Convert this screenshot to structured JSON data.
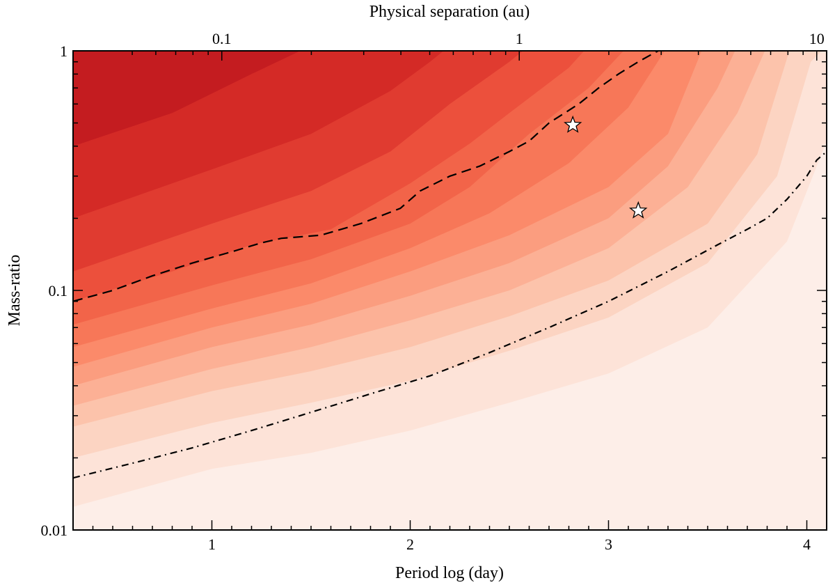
{
  "chart_data": {
    "type": "contour",
    "xlabel": "Period log (day)",
    "x2label": "Physical separation (au)",
    "ylabel": "Mass-ratio",
    "xlim": [
      0.3,
      4.1
    ],
    "ylim": [
      0.01,
      1
    ],
    "y_scale": "log",
    "x_ticks": [
      {
        "value": 1,
        "label": "1"
      },
      {
        "value": 2,
        "label": "2"
      },
      {
        "value": 3,
        "label": "3"
      },
      {
        "value": 4,
        "label": "4"
      }
    ],
    "x2_ticks": [
      {
        "value": 1.05,
        "label": "0.1"
      },
      {
        "value": 2.55,
        "label": "1"
      },
      {
        "value": 4.05,
        "label": "10"
      }
    ],
    "y_ticks": [
      {
        "value": 1,
        "label": "1"
      },
      {
        "value": 0.1,
        "label": "0.1"
      },
      {
        "value": 0.01,
        "label": "0.01"
      }
    ],
    "color_scale": [
      "#fdeee8",
      "#fde3d8",
      "#fcd4c2",
      "#fcc3ab",
      "#fcb095",
      "#fb9d7f",
      "#fb8a6a",
      "#f77758",
      "#f26449",
      "#ec503c",
      "#e03b30",
      "#d42a26",
      "#c41c20"
    ],
    "levels": [
      {
        "color": "#fde3d8",
        "points": [
          [
            0.3,
            0.0125
          ],
          [
            1.0,
            0.018
          ],
          [
            1.5,
            0.021
          ],
          [
            2.0,
            0.026
          ],
          [
            2.5,
            0.034
          ],
          [
            3.0,
            0.045
          ],
          [
            3.5,
            0.07
          ],
          [
            3.9,
            0.16
          ],
          [
            4.1,
            0.42
          ]
        ]
      },
      {
        "color": "#fcd4c2",
        "points": [
          [
            0.3,
            0.02
          ],
          [
            1.0,
            0.028
          ],
          [
            1.5,
            0.034
          ],
          [
            2.0,
            0.042
          ],
          [
            2.5,
            0.056
          ],
          [
            3.0,
            0.077
          ],
          [
            3.5,
            0.13
          ],
          [
            3.85,
            0.3
          ],
          [
            4.02,
            0.9
          ],
          [
            4.1,
            1.05
          ]
        ]
      },
      {
        "color": "#fcc3ab",
        "points": [
          [
            0.3,
            0.027
          ],
          [
            1.0,
            0.038
          ],
          [
            1.5,
            0.046
          ],
          [
            2.0,
            0.058
          ],
          [
            2.5,
            0.078
          ],
          [
            3.0,
            0.11
          ],
          [
            3.5,
            0.19
          ],
          [
            3.75,
            0.37
          ],
          [
            3.92,
            1.05
          ]
        ]
      },
      {
        "color": "#fcb095",
        "points": [
          [
            0.3,
            0.033
          ],
          [
            1.0,
            0.047
          ],
          [
            1.5,
            0.058
          ],
          [
            2.0,
            0.075
          ],
          [
            2.5,
            0.1
          ],
          [
            3.0,
            0.15
          ],
          [
            3.4,
            0.27
          ],
          [
            3.65,
            0.55
          ],
          [
            3.8,
            1.05
          ]
        ]
      },
      {
        "color": "#fb9d7f",
        "points": [
          [
            0.3,
            0.04
          ],
          [
            1.0,
            0.058
          ],
          [
            1.5,
            0.072
          ],
          [
            2.0,
            0.095
          ],
          [
            2.5,
            0.13
          ],
          [
            3.0,
            0.2
          ],
          [
            3.3,
            0.33
          ],
          [
            3.55,
            0.7
          ],
          [
            3.65,
            1.05
          ]
        ]
      },
      {
        "color": "#fb8a6a",
        "points": [
          [
            0.3,
            0.048
          ],
          [
            1.0,
            0.07
          ],
          [
            1.5,
            0.088
          ],
          [
            2.0,
            0.12
          ],
          [
            2.5,
            0.17
          ],
          [
            3.0,
            0.27
          ],
          [
            3.3,
            0.45
          ],
          [
            3.48,
            1.05
          ]
        ]
      },
      {
        "color": "#f77758",
        "points": [
          [
            0.3,
            0.058
          ],
          [
            1.0,
            0.084
          ],
          [
            1.5,
            0.107
          ],
          [
            2.0,
            0.15
          ],
          [
            2.4,
            0.21
          ],
          [
            2.8,
            0.34
          ],
          [
            3.1,
            0.58
          ],
          [
            3.3,
            1.05
          ]
        ]
      },
      {
        "color": "#f26449",
        "points": [
          [
            0.3,
            0.072
          ],
          [
            1.0,
            0.105
          ],
          [
            1.5,
            0.135
          ],
          [
            2.0,
            0.19
          ],
          [
            2.3,
            0.27
          ],
          [
            2.6,
            0.45
          ],
          [
            2.9,
            0.7
          ],
          [
            3.1,
            1.05
          ]
        ]
      },
      {
        "color": "#ec503c",
        "points": [
          [
            0.3,
            0.09
          ],
          [
            0.8,
            0.12
          ],
          [
            1.2,
            0.155
          ],
          [
            1.6,
            0.18
          ],
          [
            2.0,
            0.28
          ],
          [
            2.3,
            0.41
          ],
          [
            2.5,
            0.55
          ],
          [
            2.8,
            0.85
          ],
          [
            2.9,
            1.05
          ]
        ]
      },
      {
        "color": "#e03b30",
        "points": [
          [
            0.3,
            0.12
          ],
          [
            1.0,
            0.19
          ],
          [
            1.5,
            0.26
          ],
          [
            1.9,
            0.38
          ],
          [
            2.2,
            0.6
          ],
          [
            2.5,
            0.9
          ],
          [
            2.6,
            1.05
          ]
        ]
      },
      {
        "color": "#d42a26",
        "points": [
          [
            0.3,
            0.2
          ],
          [
            1.0,
            0.32
          ],
          [
            1.5,
            0.45
          ],
          [
            1.9,
            0.68
          ],
          [
            2.1,
            0.9
          ],
          [
            2.2,
            1.05
          ]
        ]
      },
      {
        "color": "#c41c20",
        "points": [
          [
            0.3,
            0.4
          ],
          [
            0.8,
            0.55
          ],
          [
            1.2,
            0.8
          ],
          [
            1.5,
            1.05
          ]
        ]
      }
    ],
    "series": [
      {
        "style": "dashed",
        "points": [
          [
            0.3,
            0.09
          ],
          [
            0.5,
            0.1
          ],
          [
            0.7,
            0.115
          ],
          [
            0.9,
            0.13
          ],
          [
            1.1,
            0.145
          ],
          [
            1.25,
            0.158
          ],
          [
            1.35,
            0.165
          ],
          [
            1.55,
            0.17
          ],
          [
            1.75,
            0.19
          ],
          [
            1.95,
            0.22
          ],
          [
            2.05,
            0.26
          ],
          [
            2.2,
            0.3
          ],
          [
            2.35,
            0.33
          ],
          [
            2.5,
            0.38
          ],
          [
            2.6,
            0.42
          ],
          [
            2.7,
            0.5
          ],
          [
            2.85,
            0.6
          ],
          [
            2.95,
            0.7
          ],
          [
            3.05,
            0.8
          ],
          [
            3.15,
            0.9
          ],
          [
            3.25,
            1.0
          ]
        ]
      },
      {
        "style": "dashdot",
        "points": [
          [
            0.3,
            0.0165
          ],
          [
            0.6,
            0.019
          ],
          [
            0.9,
            0.022
          ],
          [
            1.2,
            0.026
          ],
          [
            1.5,
            0.031
          ],
          [
            1.8,
            0.037
          ],
          [
            2.1,
            0.044
          ],
          [
            2.4,
            0.055
          ],
          [
            2.7,
            0.07
          ],
          [
            3.0,
            0.09
          ],
          [
            3.3,
            0.12
          ],
          [
            3.55,
            0.155
          ],
          [
            3.7,
            0.18
          ],
          [
            3.8,
            0.2
          ],
          [
            3.9,
            0.24
          ],
          [
            4.0,
            0.3
          ],
          [
            4.05,
            0.35
          ],
          [
            4.1,
            0.38
          ]
        ]
      }
    ],
    "markers": [
      {
        "symbol": "star",
        "x": 2.82,
        "y": 0.49
      },
      {
        "symbol": "star",
        "x": 3.15,
        "y": 0.215
      }
    ]
  }
}
